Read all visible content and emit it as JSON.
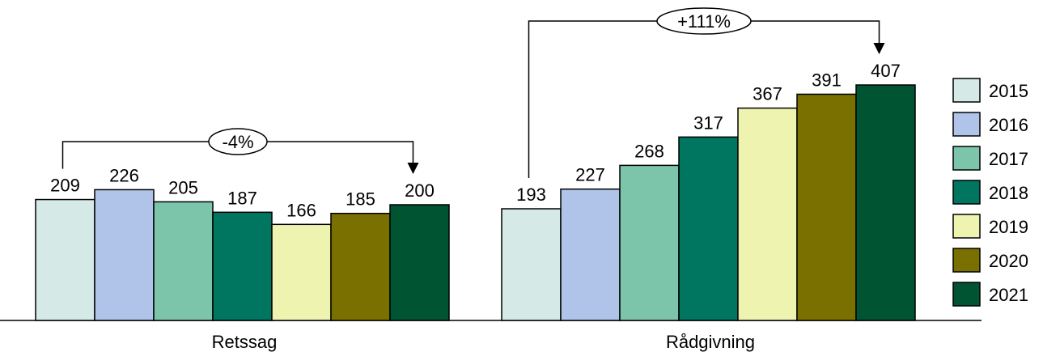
{
  "chart_data": {
    "type": "bar",
    "categories": [
      "Retssag",
      "Rådgivning"
    ],
    "series": [
      {
        "name": "2015",
        "values": [
          209,
          193
        ],
        "color": "#d5e9e6"
      },
      {
        "name": "2016",
        "values": [
          226,
          227
        ],
        "color": "#afc4e8"
      },
      {
        "name": "2017",
        "values": [
          205,
          268
        ],
        "color": "#7cc4aa"
      },
      {
        "name": "2018",
        "values": [
          187,
          317
        ],
        "color": "#00755f"
      },
      {
        "name": "2019",
        "values": [
          166,
          367
        ],
        "color": "#eef4b0"
      },
      {
        "name": "2020",
        "values": [
          185,
          391
        ],
        "color": "#7a7000"
      },
      {
        "name": "2021",
        "values": [
          200,
          407
        ],
        "color": "#005431"
      }
    ],
    "annotations": [
      {
        "category": "Retssag",
        "text": "-4%"
      },
      {
        "category": "Rådgivning",
        "text": "+111%"
      }
    ],
    "ylim": [
      0,
      407
    ],
    "grid": false,
    "legend": "right"
  }
}
